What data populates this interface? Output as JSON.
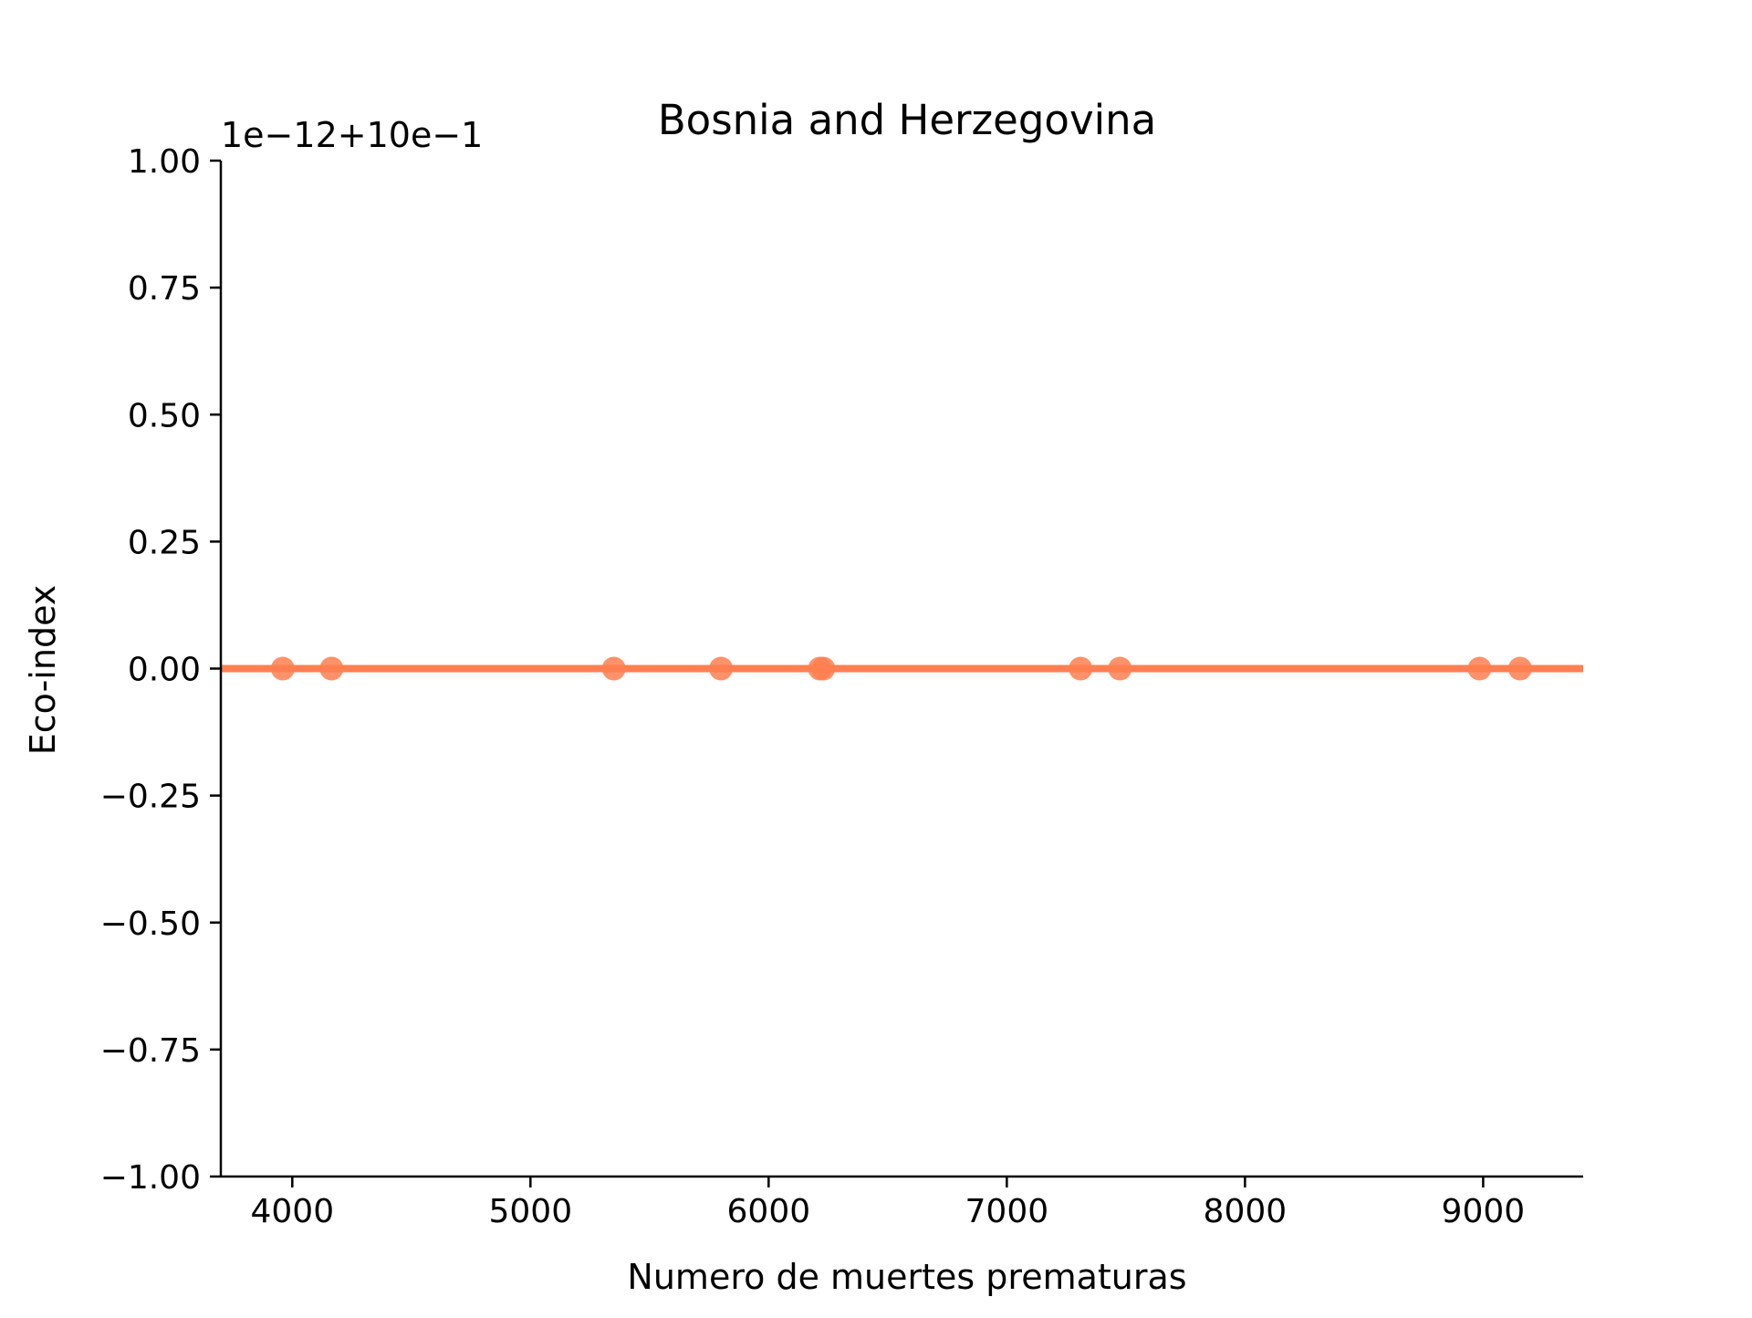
{
  "chart_data": {
    "type": "scatter",
    "title": "Bosnia and Herzegovina",
    "xlabel": "Numero de muertes prematuras",
    "ylabel": "Eco-index",
    "offset_label": "1e−12+10e−1",
    "xlim": [
      3700,
      9420
    ],
    "ylim": [
      -1.0,
      1.0
    ],
    "x_ticks": [
      4000,
      5000,
      6000,
      7000,
      8000,
      9000
    ],
    "x_tick_labels": [
      "4000",
      "5000",
      "6000",
      "7000",
      "8000",
      "9000"
    ],
    "y_ticks": [
      1.0,
      0.75,
      0.5,
      0.25,
      0.0,
      -0.25,
      -0.5,
      -0.75,
      -1.0
    ],
    "y_tick_labels": [
      "1.00",
      "0.75",
      "0.50",
      "0.25",
      "0.00",
      "−0.25",
      "−0.50",
      "−0.75",
      "−1.00"
    ],
    "grid": false,
    "color": "#ff7f50",
    "series": [
      {
        "points": [
          {
            "x": 3960,
            "y": 0.0
          },
          {
            "x": 4165,
            "y": 0.0
          },
          {
            "x": 5350,
            "y": 0.0
          },
          {
            "x": 5800,
            "y": 0.0
          },
          {
            "x": 6215,
            "y": 0.0
          },
          {
            "x": 6230,
            "y": 0.0
          },
          {
            "x": 7310,
            "y": 0.0
          },
          {
            "x": 7475,
            "y": 0.0
          },
          {
            "x": 8985,
            "y": 0.0
          },
          {
            "x": 9155,
            "y": 0.0
          }
        ]
      }
    ],
    "fit_line": {
      "x": [
        3700,
        9420
      ],
      "y": [
        0.0,
        0.0
      ]
    }
  }
}
